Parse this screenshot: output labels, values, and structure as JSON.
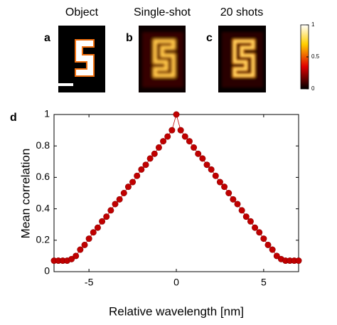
{
  "panels": {
    "titles": [
      "Object",
      "Single-shot",
      "20 shots"
    ],
    "letters": [
      "a",
      "b",
      "c",
      "d"
    ]
  },
  "colorbar": {
    "ticks": [
      1,
      0.5,
      0
    ]
  },
  "chart_data": {
    "type": "line",
    "xlabel": "Relative wavelength [nm]",
    "ylabel": "Mean correlation",
    "x": [
      -7,
      -6.75,
      -6.5,
      -6.25,
      -6,
      -5.75,
      -5.5,
      -5.25,
      -5,
      -4.75,
      -4.5,
      -4.25,
      -4,
      -3.75,
      -3.5,
      -3.25,
      -3,
      -2.75,
      -2.5,
      -2.25,
      -2,
      -1.75,
      -1.5,
      -1.25,
      -1,
      -0.75,
      -0.5,
      -0.25,
      0,
      0.25,
      0.5,
      0.75,
      1,
      1.25,
      1.5,
      1.75,
      2,
      2.25,
      2.5,
      2.75,
      3,
      3.25,
      3.5,
      3.75,
      4,
      4.25,
      4.5,
      4.75,
      5,
      5.25,
      5.5,
      5.75,
      6,
      6.25,
      6.5,
      6.75,
      7
    ],
    "series": [
      {
        "color": "#c00000",
        "values": [
          0.07,
          0.07,
          0.07,
          0.07,
          0.08,
          0.1,
          0.14,
          0.17,
          0.21,
          0.25,
          0.28,
          0.32,
          0.35,
          0.39,
          0.43,
          0.46,
          0.5,
          0.54,
          0.57,
          0.61,
          0.65,
          0.68,
          0.72,
          0.75,
          0.79,
          0.83,
          0.86,
          0.9,
          1,
          0.9,
          0.86,
          0.83,
          0.79,
          0.75,
          0.72,
          0.68,
          0.65,
          0.61,
          0.57,
          0.54,
          0.5,
          0.46,
          0.43,
          0.39,
          0.35,
          0.32,
          0.28,
          0.25,
          0.21,
          0.17,
          0.14,
          0.1,
          0.08,
          0.07,
          0.07,
          0.07,
          0.07
        ]
      }
    ],
    "xlim": [
      -7,
      7
    ],
    "xticks": [
      -5,
      0,
      5
    ],
    "ylim": [
      0,
      1
    ],
    "yticks": [
      0,
      0.2,
      0.4,
      0.6,
      0.8,
      1
    ]
  }
}
